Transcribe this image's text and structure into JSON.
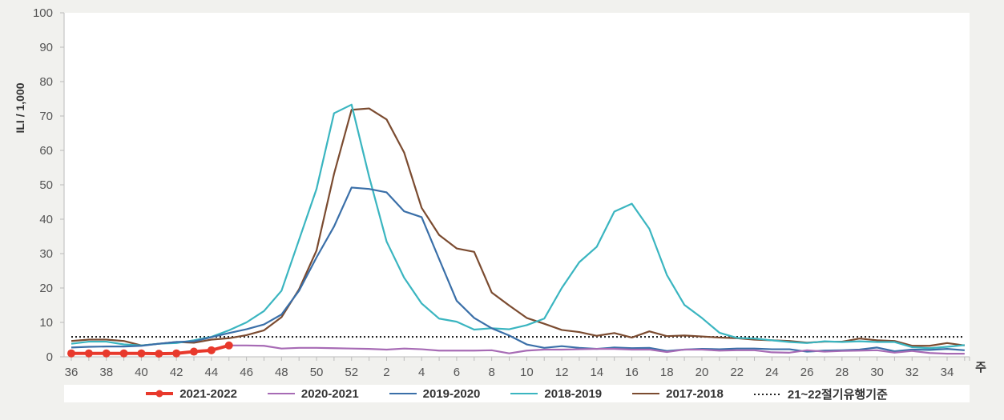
{
  "chart_data": {
    "type": "line",
    "title": "",
    "xlabel": "주",
    "ylabel": "ILI  / 1,000",
    "ylim": [
      0,
      100
    ],
    "yticks": [
      0,
      10,
      20,
      30,
      40,
      50,
      60,
      70,
      80,
      90,
      100
    ],
    "grid": false,
    "legend_position": "bottom",
    "x": [
      36,
      37,
      38,
      39,
      40,
      41,
      42,
      43,
      44,
      45,
      46,
      47,
      48,
      49,
      50,
      51,
      52,
      1,
      2,
      3,
      4,
      5,
      6,
      7,
      8,
      9,
      10,
      11,
      12,
      13,
      14,
      15,
      16,
      17,
      18,
      19,
      20,
      21,
      22,
      23,
      24,
      25,
      26,
      27,
      28,
      29,
      30,
      31,
      32,
      33,
      34,
      35
    ],
    "xtick_labels": [
      "36",
      "38",
      "40",
      "42",
      "44",
      "46",
      "48",
      "50",
      "52",
      "2",
      "4",
      "6",
      "8",
      "10",
      "12",
      "14",
      "16",
      "18",
      "20",
      "22",
      "24",
      "26",
      "28",
      "30",
      "32",
      "34"
    ],
    "series": [
      {
        "name": "2021-2022",
        "color": "#e8392c",
        "markers": true,
        "values": [
          1.0,
          1.0,
          1.0,
          1.0,
          1.0,
          0.9,
          1.0,
          1.5,
          1.9,
          3.3,
          null,
          null,
          null,
          null,
          null,
          null,
          null,
          null,
          null,
          null,
          null,
          null,
          null,
          null,
          null,
          null,
          null,
          null,
          null,
          null,
          null,
          null,
          null,
          null,
          null,
          null,
          null,
          null,
          null,
          null,
          null,
          null,
          null,
          null,
          null,
          null,
          null,
          null,
          null,
          null,
          null,
          null
        ]
      },
      {
        "name": "2020-2021",
        "color": "#a76bb5",
        "markers": false,
        "values": [
          null,
          null,
          null,
          null,
          null,
          null,
          null,
          null,
          null,
          3.3,
          3.3,
          3.2,
          2.4,
          2.6,
          2.6,
          2.5,
          2.4,
          2.3,
          2.1,
          2.4,
          2.2,
          1.8,
          1.8,
          1.8,
          1.9,
          1.0,
          1.8,
          2.1,
          2.1,
          2.2,
          2.3,
          2.3,
          2.1,
          2.1,
          1.4,
          2.1,
          2.1,
          1.8,
          1.9,
          1.9,
          1.3,
          1.2,
          1.9,
          1.5,
          1.7,
          1.8,
          1.9,
          1.2,
          1.7,
          1.1,
          0.9,
          0.9
        ]
      },
      {
        "name": "2019-2020",
        "color": "#3a6fa8",
        "markers": false,
        "values": [
          2.7,
          2.9,
          3.0,
          3.0,
          3.2,
          3.8,
          4.3,
          4.5,
          5.7,
          6.9,
          8.0,
          9.4,
          12.3,
          19.2,
          28.9,
          37.9,
          49.2,
          48.8,
          47.8,
          42.3,
          40.6,
          28.4,
          16.3,
          11.3,
          8.3,
          6.2,
          3.6,
          2.6,
          3.1,
          2.6,
          2.3,
          2.7,
          2.5,
          2.6,
          1.7,
          2.1,
          2.3,
          2.2,
          2.4,
          2.4,
          2.2,
          2.2,
          1.5,
          1.8,
          1.9,
          2.1,
          2.7,
          1.6,
          2.1,
          2.0,
          2.3,
          1.9
        ]
      },
      {
        "name": "2018-2019",
        "color": "#3ab5c0",
        "markers": false,
        "values": [
          3.8,
          4.4,
          4.4,
          3.6,
          3.3,
          3.8,
          4.0,
          4.8,
          5.8,
          7.7,
          10.0,
          13.3,
          19.2,
          34.0,
          48.8,
          70.8,
          73.3,
          52.4,
          33.5,
          23.0,
          15.5,
          11.1,
          10.2,
          7.9,
          8.3,
          8.0,
          9.2,
          11.1,
          20.0,
          27.5,
          32.0,
          42.2,
          44.5,
          37.2,
          23.8,
          15.1,
          11.3,
          7.0,
          5.5,
          5.3,
          4.8,
          4.3,
          4.0,
          4.5,
          4.3,
          4.5,
          4.3,
          4.3,
          2.8,
          2.5,
          2.9,
          3.4
        ]
      },
      {
        "name": "2017-2018",
        "color": "#7b4b30",
        "markers": false,
        "values": [
          4.6,
          5.0,
          5.0,
          4.6,
          3.3,
          3.8,
          4.3,
          4.1,
          5.0,
          5.4,
          6.3,
          7.7,
          11.5,
          19.6,
          30.9,
          53.2,
          71.8,
          72.2,
          69.0,
          59.4,
          43.3,
          35.4,
          31.5,
          30.5,
          18.7,
          14.9,
          11.3,
          9.6,
          7.8,
          7.2,
          6.1,
          6.9,
          5.6,
          7.4,
          6.0,
          6.2,
          5.9,
          5.6,
          5.4,
          5.0,
          4.8,
          4.6,
          4.1,
          4.4,
          4.4,
          5.3,
          4.8,
          4.6,
          3.2,
          3.2,
          4.0,
          3.3
        ]
      },
      {
        "name": "21~22절기유행기준",
        "color": "#222222",
        "dashed": true,
        "threshold": 5.8
      }
    ]
  },
  "legend": [
    {
      "label": "2021-2022"
    },
    {
      "label": "2020-2021"
    },
    {
      "label": "2019-2020"
    },
    {
      "label": "2018-2019"
    },
    {
      "label": "2017-2018"
    },
    {
      "label": "21~22절기유행기준"
    }
  ]
}
